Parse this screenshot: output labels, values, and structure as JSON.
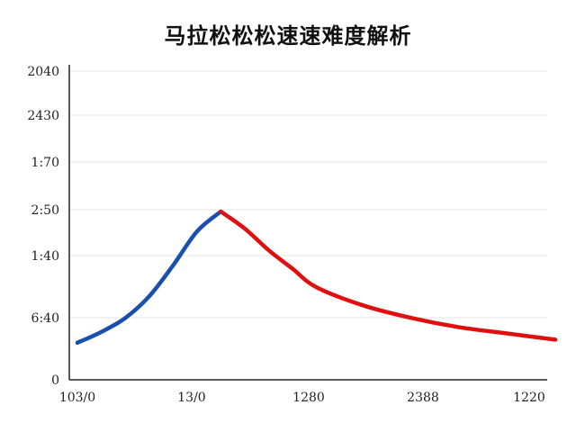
{
  "chart_data": {
    "type": "line",
    "title": "马拉松松松速速难度解析",
    "xlabel": "",
    "ylabel": "",
    "y_tick_labels": [
      "0",
      "6:40",
      "1:40",
      "2:50",
      "1:70",
      "2430",
      "2040"
    ],
    "x_tick_labels": [
      "103/0",
      "13/0",
      "1280",
      "2388",
      "1220"
    ],
    "grid": true,
    "series": [
      {
        "color": "#1a4fb0",
        "points": [
          [
            0.0,
            0.12
          ],
          [
            0.05,
            0.155
          ],
          [
            0.1,
            0.2
          ],
          [
            0.15,
            0.27
          ],
          [
            0.2,
            0.37
          ],
          [
            0.25,
            0.48
          ],
          [
            0.3,
            0.545
          ]
        ]
      },
      {
        "color": "#e01010",
        "points": [
          [
            0.3,
            0.545
          ],
          [
            0.35,
            0.49
          ],
          [
            0.4,
            0.42
          ],
          [
            0.45,
            0.36
          ],
          [
            0.5,
            0.3
          ],
          [
            0.6,
            0.24
          ],
          [
            0.7,
            0.2
          ],
          [
            0.8,
            0.17
          ],
          [
            0.9,
            0.15
          ],
          [
            1.0,
            0.13
          ]
        ]
      }
    ],
    "xlim": [
      0,
      1
    ],
    "ylim": [
      0,
      1
    ]
  }
}
